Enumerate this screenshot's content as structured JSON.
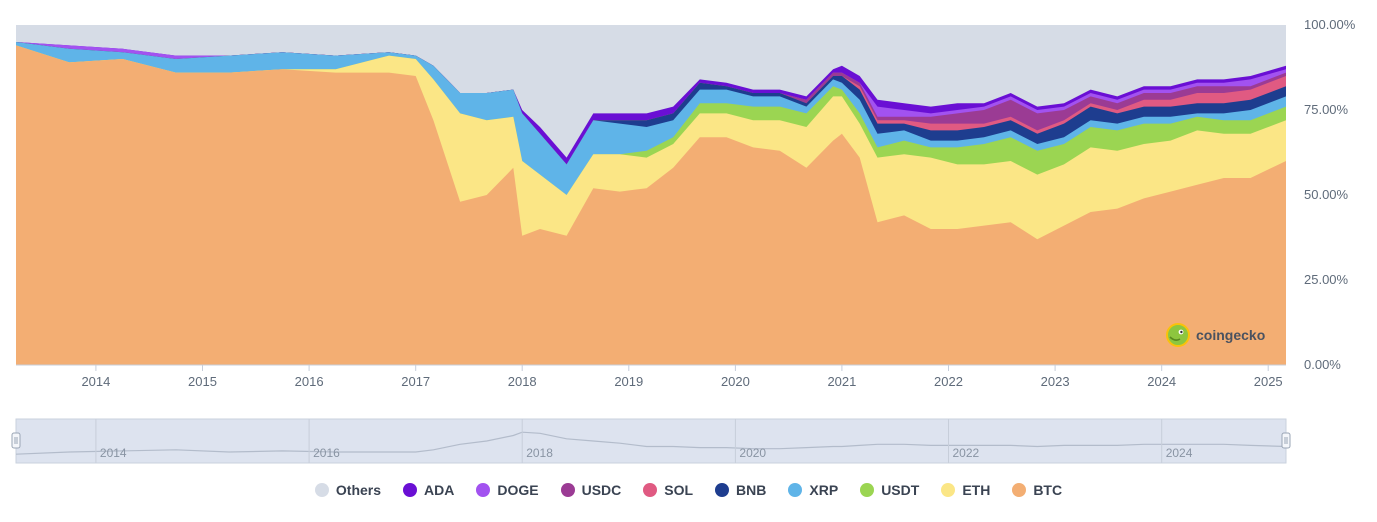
{
  "chart_data": {
    "type": "area",
    "stacked": true,
    "percent": true,
    "ylim": [
      0,
      100
    ],
    "y_ticks": [
      "0.00%",
      "25.00%",
      "50.00%",
      "75.00%",
      "100.00%"
    ],
    "x_ticks": [
      "2014",
      "2015",
      "2016",
      "2017",
      "2018",
      "2019",
      "2020",
      "2021",
      "2022",
      "2023",
      "2024",
      "2025"
    ],
    "navigator_ticks": [
      "2014",
      "2016",
      "2018",
      "2020",
      "2022",
      "2024"
    ],
    "x_range": [
      "2013-04",
      "2025-03"
    ],
    "dates": [
      "2013-04",
      "2013-10",
      "2014-04",
      "2014-10",
      "2015-04",
      "2015-10",
      "2016-04",
      "2016-10",
      "2017-01",
      "2017-03",
      "2017-06",
      "2017-09",
      "2017-12",
      "2018-01",
      "2018-03",
      "2018-06",
      "2018-09",
      "2018-12",
      "2019-03",
      "2019-06",
      "2019-09",
      "2019-12",
      "2020-03",
      "2020-06",
      "2020-09",
      "2020-12",
      "2021-01",
      "2021-03",
      "2021-05",
      "2021-08",
      "2021-11",
      "2022-02",
      "2022-05",
      "2022-08",
      "2022-11",
      "2023-02",
      "2023-05",
      "2023-08",
      "2023-11",
      "2024-02",
      "2024-05",
      "2024-08",
      "2024-11",
      "2025-03"
    ],
    "series": [
      {
        "name": "BTC",
        "color": "#f3ae73",
        "values": [
          94,
          89,
          90,
          86,
          86,
          87,
          86,
          86,
          85,
          72,
          48,
          50,
          58,
          38,
          40,
          38,
          52,
          51,
          52,
          58,
          67,
          67,
          64,
          63,
          58,
          66,
          68,
          61,
          42,
          44,
          40,
          40,
          41,
          42,
          37,
          41,
          45,
          46,
          49,
          51,
          53,
          55,
          55,
          60
        ]
      },
      {
        "name": "ETH",
        "color": "#fbe686",
        "values": [
          0,
          0,
          0,
          0,
          0,
          0,
          1,
          5,
          5,
          12,
          26,
          22,
          15,
          22,
          16,
          12,
          10,
          11,
          9,
          7,
          7,
          7,
          8,
          9,
          12,
          13,
          11,
          10,
          19,
          18,
          21,
          19,
          18,
          18,
          19,
          18,
          19,
          17,
          16,
          15,
          16,
          13,
          13,
          12
        ]
      },
      {
        "name": "USDT",
        "color": "#9bd552",
        "values": [
          0,
          0,
          0,
          0,
          0,
          0,
          0,
          0,
          0,
          0,
          0,
          0,
          0,
          0,
          0,
          0,
          0,
          0,
          2,
          2,
          3,
          3,
          4,
          4,
          4,
          3,
          2,
          3,
          3,
          4,
          3,
          5,
          6,
          7,
          7,
          6,
          6,
          6,
          6,
          5,
          4,
          4,
          4,
          4
        ]
      },
      {
        "name": "XRP",
        "color": "#5fb4e8",
        "values": [
          1,
          4,
          2,
          4,
          5,
          5,
          4,
          1,
          1,
          4,
          6,
          8,
          8,
          14,
          12,
          9,
          10,
          9,
          7,
          5,
          4,
          4,
          3,
          3,
          2,
          2,
          2,
          4,
          4,
          3,
          2,
          2,
          2,
          2,
          2,
          2,
          2,
          2,
          2,
          2,
          1,
          2,
          3,
          3
        ]
      },
      {
        "name": "BNB",
        "color": "#1e3d8f",
        "values": [
          0,
          0,
          0,
          0,
          0,
          0,
          0,
          0,
          0,
          0,
          0,
          0,
          0,
          0,
          0,
          0,
          0,
          1,
          2,
          2,
          2,
          1,
          1,
          1,
          1,
          1,
          2,
          3,
          3,
          2,
          3,
          3,
          3,
          3,
          3,
          4,
          4,
          3,
          3,
          3,
          3,
          3,
          3,
          3
        ]
      },
      {
        "name": "SOL",
        "color": "#e05a82",
        "values": [
          0,
          0,
          0,
          0,
          0,
          0,
          0,
          0,
          0,
          0,
          0,
          0,
          0,
          0,
          0,
          0,
          0,
          0,
          0,
          0,
          0,
          0,
          0,
          0,
          0,
          0,
          0,
          1,
          1,
          1,
          2,
          2,
          1,
          1,
          1,
          1,
          1,
          1,
          2,
          2,
          3,
          3,
          3,
          3
        ]
      },
      {
        "name": "USDC",
        "color": "#9b3b94",
        "values": [
          0,
          0,
          0,
          0,
          0,
          0,
          0,
          0,
          0,
          0,
          0,
          0,
          0,
          0,
          0,
          0,
          0,
          0,
          0,
          0,
          0,
          0,
          0,
          0,
          1,
          1,
          1,
          1,
          1,
          1,
          2,
          3,
          4,
          5,
          5,
          3,
          2,
          2,
          2,
          2,
          2,
          2,
          1,
          1
        ]
      },
      {
        "name": "DOGE",
        "color": "#a252f0",
        "values": [
          0,
          1,
          1,
          1,
          0,
          0,
          0,
          0,
          0,
          0,
          0,
          0,
          0,
          0,
          0,
          0,
          0,
          0,
          0,
          0,
          0,
          0,
          0,
          0,
          0,
          0,
          0,
          0,
          3,
          2,
          1,
          1,
          1,
          1,
          1,
          1,
          1,
          1,
          1,
          1,
          1,
          1,
          2,
          1
        ]
      },
      {
        "name": "ADA",
        "color": "#6a0fd4",
        "values": [
          0,
          0,
          0,
          0,
          0,
          0,
          0,
          0,
          0,
          0,
          0,
          0,
          0,
          1,
          2,
          2,
          2,
          2,
          2,
          2,
          1,
          1,
          1,
          1,
          1,
          1,
          2,
          2,
          2,
          2,
          2,
          2,
          1,
          1,
          1,
          1,
          1,
          1,
          1,
          1,
          1,
          1,
          1,
          1
        ]
      }
    ],
    "others": {
      "name": "Others",
      "color": "#d6dce6"
    },
    "navigator_series": [
      38,
      40,
      41,
      42,
      40,
      41,
      40,
      40,
      40,
      42,
      47,
      50,
      55,
      58,
      57,
      52,
      50,
      48,
      45,
      45,
      44,
      44,
      43,
      43,
      44,
      45,
      45,
      46,
      47,
      47,
      46,
      46,
      46,
      46,
      45,
      46,
      46,
      46,
      47,
      47,
      47,
      47,
      46,
      45
    ]
  },
  "legend": {
    "items": [
      {
        "label": "Others",
        "color": "#d6dce6"
      },
      {
        "label": "ADA",
        "color": "#6a0fd4"
      },
      {
        "label": "DOGE",
        "color": "#a252f0"
      },
      {
        "label": "USDC",
        "color": "#9b3b94"
      },
      {
        "label": "SOL",
        "color": "#e05a82"
      },
      {
        "label": "BNB",
        "color": "#1e3d8f"
      },
      {
        "label": "XRP",
        "color": "#5fb4e8"
      },
      {
        "label": "USDT",
        "color": "#9bd552"
      },
      {
        "label": "ETH",
        "color": "#fbe686"
      },
      {
        "label": "BTC",
        "color": "#f3ae73"
      }
    ]
  },
  "watermark": {
    "text": "coingecko",
    "icon": "gecko-logo-icon"
  }
}
